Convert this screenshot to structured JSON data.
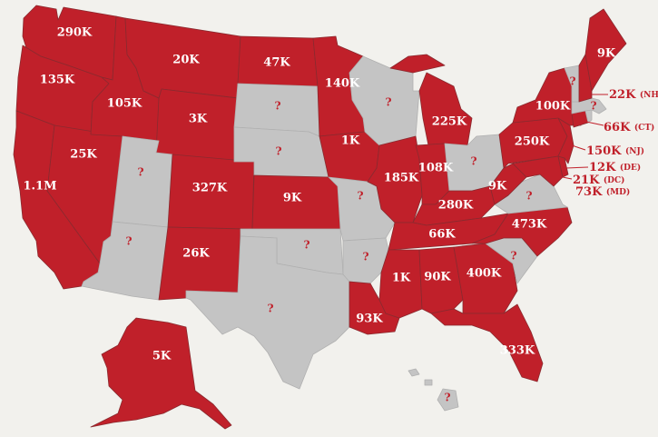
{
  "colors": {
    "known": "#c0202a",
    "unknown": "#c4c4c4",
    "border": "#8a2a2f",
    "background": "#f2f1ed",
    "unknown_label": "#c0202a"
  },
  "states": [
    {
      "id": "wa",
      "label": "290K",
      "status": "known"
    },
    {
      "id": "or",
      "label": "135K",
      "status": "known"
    },
    {
      "id": "ca",
      "label": "1.1M",
      "status": "known"
    },
    {
      "id": "nv",
      "label": "25K",
      "status": "known"
    },
    {
      "id": "id",
      "label": "105K",
      "status": "known"
    },
    {
      "id": "mt",
      "label": "20K",
      "status": "known"
    },
    {
      "id": "wy",
      "label": "3K",
      "status": "known"
    },
    {
      "id": "ut",
      "label": "?",
      "status": "unknown"
    },
    {
      "id": "az",
      "label": "?",
      "status": "unknown"
    },
    {
      "id": "co",
      "label": "327K",
      "status": "known"
    },
    {
      "id": "nm",
      "label": "26K",
      "status": "known"
    },
    {
      "id": "nd",
      "label": "47K",
      "status": "known"
    },
    {
      "id": "sd",
      "label": "?",
      "status": "unknown"
    },
    {
      "id": "ne",
      "label": "?",
      "status": "unknown"
    },
    {
      "id": "ks",
      "label": "9K",
      "status": "known"
    },
    {
      "id": "ok",
      "label": "?",
      "status": "unknown"
    },
    {
      "id": "tx",
      "label": "?",
      "status": "unknown"
    },
    {
      "id": "mn",
      "label": "140K",
      "status": "known"
    },
    {
      "id": "ia",
      "label": "1K",
      "status": "known"
    },
    {
      "id": "mo",
      "label": "?",
      "status": "unknown"
    },
    {
      "id": "ar",
      "label": "?",
      "status": "unknown"
    },
    {
      "id": "la",
      "label": "93K",
      "status": "known"
    },
    {
      "id": "wi",
      "label": "?",
      "status": "unknown"
    },
    {
      "id": "il",
      "label": "185K",
      "status": "known"
    },
    {
      "id": "mi",
      "label": "225K",
      "status": "known"
    },
    {
      "id": "in",
      "label": "108K",
      "status": "known"
    },
    {
      "id": "oh",
      "label": "?",
      "status": "unknown"
    },
    {
      "id": "ky",
      "label": "280K",
      "status": "known"
    },
    {
      "id": "tn",
      "label": "66K",
      "status": "known"
    },
    {
      "id": "ms",
      "label": "1K",
      "status": "known"
    },
    {
      "id": "al",
      "label": "90K",
      "status": "known"
    },
    {
      "id": "ga",
      "label": "400K",
      "status": "known"
    },
    {
      "id": "fl",
      "label": "333K",
      "status": "known"
    },
    {
      "id": "sc",
      "label": "?",
      "status": "unknown"
    },
    {
      "id": "nc",
      "label": "473K",
      "status": "known"
    },
    {
      "id": "va",
      "label": "?",
      "status": "unknown"
    },
    {
      "id": "wv",
      "label": "9K",
      "status": "known"
    },
    {
      "id": "pa",
      "label": "250K",
      "status": "known"
    },
    {
      "id": "ny",
      "label": "100K",
      "status": "known"
    },
    {
      "id": "vt",
      "label": "?",
      "status": "unknown"
    },
    {
      "id": "me",
      "label": "9K",
      "status": "known"
    },
    {
      "id": "ma",
      "label": "?",
      "status": "unknown"
    },
    {
      "id": "ak",
      "label": "5K",
      "status": "known"
    },
    {
      "id": "hi",
      "label": "?",
      "status": "unknown"
    }
  ],
  "small_states": [
    {
      "id": "nh",
      "value": "22K",
      "abbr": "(NH)"
    },
    {
      "id": "ct",
      "value": "66K",
      "abbr": "(CT)"
    },
    {
      "id": "nj",
      "value": "150K",
      "abbr": "(NJ)"
    },
    {
      "id": "de",
      "value": "12K",
      "abbr": "(DE)"
    },
    {
      "id": "dc",
      "value": "21K",
      "abbr": "(DC)"
    },
    {
      "id": "md",
      "value": "73K",
      "abbr": "(MD)"
    }
  ]
}
